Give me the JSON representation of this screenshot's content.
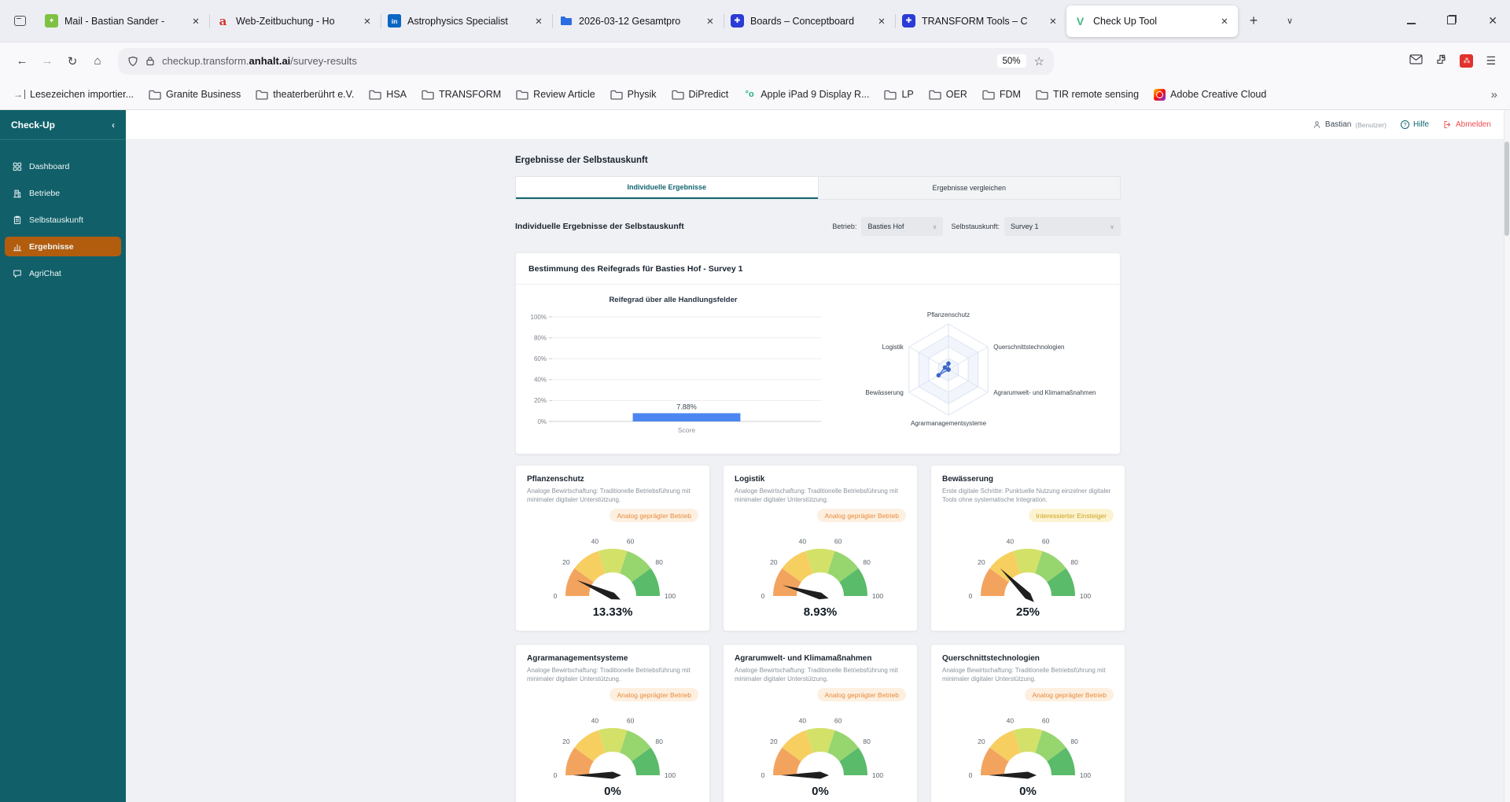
{
  "browser": {
    "tabs": [
      {
        "title": "Mail - Bastian Sander -",
        "icon": "mail"
      },
      {
        "title": "Web-Zeitbuchung - Ho",
        "icon": "a"
      },
      {
        "title": "Astrophysics Specialist",
        "icon": "linkedin"
      },
      {
        "title": "2026-03-12 Gesamtpro",
        "icon": "folder"
      },
      {
        "title": "Boards – Conceptboard",
        "icon": "concept"
      },
      {
        "title": "TRANSFORM Tools – C",
        "icon": "concept"
      },
      {
        "title": "Check Up Tool",
        "icon": "vue",
        "active": true
      }
    ],
    "url": {
      "prefix": "checkup.transform.",
      "emphasis": "anhalt.ai",
      "path": "/survey-results"
    },
    "zoom_level": "50%",
    "bookmarks": [
      {
        "label": "Lesezeichen importier...",
        "icon": "import"
      },
      {
        "label": "Granite Business",
        "icon": "folder"
      },
      {
        "label": "theaterberührt e.V.",
        "icon": "folder"
      },
      {
        "label": "HSA",
        "icon": "folder"
      },
      {
        "label": "TRANSFORM",
        "icon": "folder"
      },
      {
        "label": "Review Article",
        "icon": "folder"
      },
      {
        "label": "Physik",
        "icon": "folder"
      },
      {
        "label": "DiPredict",
        "icon": "folder"
      },
      {
        "label": "Apple iPad 9 Display R...",
        "icon": "circles"
      },
      {
        "label": "LP",
        "icon": "folder"
      },
      {
        "label": "OER",
        "icon": "folder"
      },
      {
        "label": "FDM",
        "icon": "folder"
      },
      {
        "label": "TIR remote sensing",
        "icon": "folder"
      },
      {
        "label": "Adobe Creative Cloud",
        "icon": "adobe"
      }
    ]
  },
  "app": {
    "sidebar": {
      "title": "Check-Up",
      "items": [
        {
          "label": "Dashboard",
          "icon": "dashboard"
        },
        {
          "label": "Betriebe",
          "icon": "betriebe"
        },
        {
          "label": "Selbstauskunft",
          "icon": "selbstauskunft"
        },
        {
          "label": "Ergebnisse",
          "icon": "ergebnisse",
          "active": true
        },
        {
          "label": "AgriChat",
          "icon": "agrichat"
        }
      ]
    },
    "header": {
      "user": "Bastian",
      "user_role": "(Benutzer)",
      "help": "Hilfe",
      "logout": "Abmelden"
    },
    "page_title": "Ergebnisse der Selbstauskunft",
    "tabs": [
      {
        "label": "Individuelle Ergebnisse",
        "active": true
      },
      {
        "label": "Ergebnisse vergleichen"
      }
    ],
    "section_title": "Individuelle Ergebnisse der Selbstauskunft",
    "filters": {
      "betrieb_label": "Betrieb:",
      "betrieb_value": "Basties Hof",
      "selbstauskunft_label": "Selbstauskunft:",
      "selbstauskunft_value": "Survey 1"
    },
    "maturity_card_title": "Bestimmung des Reifegrads für Basties Hof - Survey 1"
  },
  "chart_data": [
    {
      "type": "bar",
      "title": "Reifegrad über alle Handlungsfelder",
      "categories": [
        "Score"
      ],
      "values": [
        7.88
      ],
      "value_labels": [
        "7.88%"
      ],
      "yticks": [
        "0%",
        "20%",
        "40%",
        "60%",
        "80%",
        "100%"
      ],
      "ylim": [
        0,
        100
      ],
      "bar_color": "#4c86f0",
      "grid": true,
      "legend": false
    },
    {
      "type": "radar",
      "categories": [
        "Pflanzenschutz",
        "Querschnittstechnologien",
        "Agrarumwelt- und Klimamaßnahmen",
        "Agrarmanagementsysteme",
        "Bewässerung",
        "Logistik"
      ],
      "values": [
        13.33,
        0,
        0,
        0,
        25,
        8.93
      ],
      "max": 100,
      "rings": 4,
      "stroke_color": "#4c76d9",
      "fill_color": "rgba(76,118,217,0.25)"
    },
    {
      "type": "gauge",
      "min": 0,
      "max": 100,
      "ticks": [
        0,
        20,
        40,
        60,
        80,
        100
      ],
      "segment_colors": [
        "#f2a45f",
        "#f7cf60",
        "#d3e169",
        "#97d56f",
        "#5abb6a"
      ],
      "needle_color": "#1f1f1f",
      "cards": [
        {
          "title": "Pflanzenschutz",
          "description": "Analoge Bewirtschaftung: Traditionelle Betriebsführung mit minimaler digitaler Unterstützung.",
          "badge": "Analog geprägter Betrieb",
          "badge_style": "orange",
          "value": 13.33,
          "value_label": "13.33%"
        },
        {
          "title": "Logistik",
          "description": "Analoge Bewirtschaftung: Traditionelle Betriebsführung mit minimaler digitaler Unterstützung.",
          "badge": "Analog geprägter Betrieb",
          "badge_style": "orange",
          "value": 8.93,
          "value_label": "8.93%"
        },
        {
          "title": "Bewässerung",
          "description": "Erste digitale Schritte: Punktuelle Nutzung einzelner digitaler Tools ohne systematische Integration.",
          "badge": "Interessierter Einsteiger",
          "badge_style": "yellow",
          "value": 25,
          "value_label": "25%"
        },
        {
          "title": "Agrarmanagementsysteme",
          "description": "Analoge Bewirtschaftung: Traditionelle Betriebsführung mit minimaler digitaler Unterstützung.",
          "badge": "Analog geprägter Betrieb",
          "badge_style": "orange",
          "value": 0,
          "value_label": "0%"
        },
        {
          "title": "Agrarumwelt- und Klimamaßnahmen",
          "description": "Analoge Bewirtschaftung: Traditionelle Betriebsführung mit minimaler digitaler Unterstützung.",
          "badge": "Analog geprägter Betrieb",
          "badge_style": "orange",
          "value": 0,
          "value_label": "0%"
        },
        {
          "title": "Querschnittstechnologien",
          "description": "Analoge Bewirtschaftung: Traditionelle Betriebsführung mit minimaler digitaler Unterstützung.",
          "badge": "Analog geprägter Betrieb",
          "badge_style": "orange",
          "value": 0,
          "value_label": "0%"
        }
      ]
    }
  ]
}
